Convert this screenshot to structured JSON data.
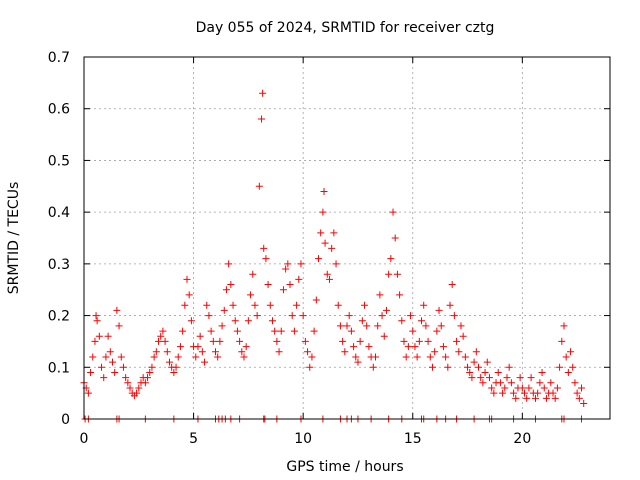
{
  "chart_data": {
    "type": "scatter",
    "title": "Day 055 of 2024, SRMTID for receiver cztg",
    "xlabel": "GPS time / hours",
    "ylabel": "SRMTID / TECUs",
    "xlim": [
      0,
      24
    ],
    "ylim": [
      0,
      0.7
    ],
    "xticks": [
      0,
      5,
      10,
      15,
      20
    ],
    "yticks": [
      0,
      0.1,
      0.2,
      0.3,
      0.4,
      0.5,
      0.6,
      0.7
    ],
    "xtick_labels": [
      "0",
      "5",
      "10",
      "15",
      "20"
    ],
    "ytick_labels": [
      "0",
      "0.1",
      "0.2",
      "0.3",
      "0.4",
      "0.5",
      "0.6",
      "0.7"
    ],
    "grid": true,
    "marker": "+",
    "color": "#ff0000",
    "series": [
      {
        "name": "SRMTID",
        "points": [
          [
            0.0,
            0.07
          ],
          [
            0.1,
            0.06
          ],
          [
            0.2,
            0.05
          ],
          [
            0.3,
            0.09
          ],
          [
            0.4,
            0.12
          ],
          [
            0.5,
            0.15
          ],
          [
            0.55,
            0.2
          ],
          [
            0.6,
            0.19
          ],
          [
            0.7,
            0.16
          ],
          [
            0.8,
            0.1
          ],
          [
            0.9,
            0.08
          ],
          [
            1.0,
            0.12
          ],
          [
            1.1,
            0.16
          ],
          [
            1.2,
            0.13
          ],
          [
            1.3,
            0.11
          ],
          [
            1.4,
            0.09
          ],
          [
            1.5,
            0.21
          ],
          [
            1.6,
            0.18
          ],
          [
            1.7,
            0.12
          ],
          [
            1.8,
            0.1
          ],
          [
            1.9,
            0.08
          ],
          [
            2.0,
            0.07
          ],
          [
            2.1,
            0.06
          ],
          [
            2.2,
            0.05
          ],
          [
            2.3,
            0.045
          ],
          [
            2.4,
            0.05
          ],
          [
            2.5,
            0.06
          ],
          [
            2.6,
            0.07
          ],
          [
            2.7,
            0.08
          ],
          [
            2.8,
            0.07
          ],
          [
            2.9,
            0.08
          ],
          [
            3.0,
            0.09
          ],
          [
            3.1,
            0.1
          ],
          [
            3.2,
            0.12
          ],
          [
            3.3,
            0.13
          ],
          [
            3.4,
            0.15
          ],
          [
            3.5,
            0.16
          ],
          [
            3.6,
            0.17
          ],
          [
            3.7,
            0.15
          ],
          [
            3.8,
            0.13
          ],
          [
            3.9,
            0.11
          ],
          [
            4.0,
            0.1
          ],
          [
            4.1,
            0.09
          ],
          [
            4.2,
            0.1
          ],
          [
            4.3,
            0.12
          ],
          [
            4.4,
            0.14
          ],
          [
            4.5,
            0.17
          ],
          [
            4.6,
            0.22
          ],
          [
            4.7,
            0.27
          ],
          [
            4.8,
            0.24
          ],
          [
            4.9,
            0.19
          ],
          [
            5.0,
            0.14
          ],
          [
            5.1,
            0.12
          ],
          [
            5.2,
            0.14
          ],
          [
            5.3,
            0.16
          ],
          [
            5.4,
            0.13
          ],
          [
            5.5,
            0.11
          ],
          [
            5.6,
            0.22
          ],
          [
            5.7,
            0.2
          ],
          [
            5.8,
            0.17
          ],
          [
            5.9,
            0.15
          ],
          [
            6.0,
            0.13
          ],
          [
            6.1,
            0.12
          ],
          [
            6.2,
            0.15
          ],
          [
            6.3,
            0.18
          ],
          [
            6.4,
            0.21
          ],
          [
            6.5,
            0.25
          ],
          [
            6.6,
            0.3
          ],
          [
            6.7,
            0.26
          ],
          [
            6.8,
            0.22
          ],
          [
            6.9,
            0.19
          ],
          [
            7.0,
            0.17
          ],
          [
            7.1,
            0.15
          ],
          [
            7.2,
            0.13
          ],
          [
            7.3,
            0.12
          ],
          [
            7.4,
            0.14
          ],
          [
            7.5,
            0.19
          ],
          [
            7.6,
            0.24
          ],
          [
            7.7,
            0.28
          ],
          [
            7.8,
            0.22
          ],
          [
            7.9,
            0.2
          ],
          [
            8.0,
            0.45
          ],
          [
            8.1,
            0.58
          ],
          [
            8.15,
            0.63
          ],
          [
            8.2,
            0.33
          ],
          [
            8.3,
            0.31
          ],
          [
            8.4,
            0.26
          ],
          [
            8.5,
            0.22
          ],
          [
            8.6,
            0.19
          ],
          [
            8.7,
            0.17
          ],
          [
            8.8,
            0.15
          ],
          [
            8.9,
            0.13
          ],
          [
            9.0,
            0.17
          ],
          [
            9.1,
            0.25
          ],
          [
            9.2,
            0.29
          ],
          [
            9.3,
            0.3
          ],
          [
            9.4,
            0.26
          ],
          [
            9.5,
            0.2
          ],
          [
            9.6,
            0.17
          ],
          [
            9.7,
            0.22
          ],
          [
            9.8,
            0.27
          ],
          [
            9.9,
            0.3
          ],
          [
            10.0,
            0.2
          ],
          [
            10.1,
            0.15
          ],
          [
            10.2,
            0.13
          ],
          [
            10.3,
            0.1
          ],
          [
            10.4,
            0.12
          ],
          [
            10.5,
            0.17
          ],
          [
            10.6,
            0.23
          ],
          [
            10.7,
            0.31
          ],
          [
            10.8,
            0.36
          ],
          [
            10.9,
            0.4
          ],
          [
            10.95,
            0.44
          ],
          [
            11.0,
            0.34
          ],
          [
            11.1,
            0.28
          ],
          [
            11.2,
            0.27
          ],
          [
            11.3,
            0.33
          ],
          [
            11.4,
            0.36
          ],
          [
            11.5,
            0.3
          ],
          [
            11.6,
            0.22
          ],
          [
            11.7,
            0.18
          ],
          [
            11.8,
            0.15
          ],
          [
            11.9,
            0.13
          ],
          [
            12.0,
            0.18
          ],
          [
            12.1,
            0.2
          ],
          [
            12.2,
            0.17
          ],
          [
            12.3,
            0.14
          ],
          [
            12.4,
            0.12
          ],
          [
            12.5,
            0.11
          ],
          [
            12.6,
            0.15
          ],
          [
            12.7,
            0.19
          ],
          [
            12.8,
            0.22
          ],
          [
            12.9,
            0.18
          ],
          [
            13.0,
            0.14
          ],
          [
            13.1,
            0.12
          ],
          [
            13.2,
            0.1
          ],
          [
            13.3,
            0.12
          ],
          [
            13.4,
            0.18
          ],
          [
            13.5,
            0.24
          ],
          [
            13.6,
            0.2
          ],
          [
            13.7,
            0.16
          ],
          [
            13.8,
            0.21
          ],
          [
            13.9,
            0.28
          ],
          [
            14.0,
            0.31
          ],
          [
            14.1,
            0.4
          ],
          [
            14.2,
            0.35
          ],
          [
            14.3,
            0.28
          ],
          [
            14.4,
            0.24
          ],
          [
            14.5,
            0.19
          ],
          [
            14.6,
            0.15
          ],
          [
            14.7,
            0.12
          ],
          [
            14.8,
            0.14
          ],
          [
            14.9,
            0.2
          ],
          [
            15.0,
            0.17
          ],
          [
            15.1,
            0.14
          ],
          [
            15.2,
            0.12
          ],
          [
            15.3,
            0.15
          ],
          [
            15.4,
            0.19
          ],
          [
            15.5,
            0.22
          ],
          [
            15.6,
            0.18
          ],
          [
            15.7,
            0.15
          ],
          [
            15.8,
            0.12
          ],
          [
            15.9,
            0.1
          ],
          [
            16.0,
            0.13
          ],
          [
            16.1,
            0.17
          ],
          [
            16.2,
            0.21
          ],
          [
            16.3,
            0.18
          ],
          [
            16.4,
            0.14
          ],
          [
            16.5,
            0.12
          ],
          [
            16.6,
            0.1
          ],
          [
            16.7,
            0.22
          ],
          [
            16.8,
            0.26
          ],
          [
            16.9,
            0.2
          ],
          [
            17.0,
            0.15
          ],
          [
            17.1,
            0.13
          ],
          [
            17.2,
            0.18
          ],
          [
            17.3,
            0.16
          ],
          [
            17.4,
            0.12
          ],
          [
            17.5,
            0.1
          ],
          [
            17.6,
            0.09
          ],
          [
            17.7,
            0.08
          ],
          [
            17.8,
            0.11
          ],
          [
            17.9,
            0.13
          ],
          [
            18.0,
            0.1
          ],
          [
            18.1,
            0.08
          ],
          [
            18.2,
            0.07
          ],
          [
            18.3,
            0.09
          ],
          [
            18.4,
            0.11
          ],
          [
            18.5,
            0.08
          ],
          [
            18.6,
            0.06
          ],
          [
            18.7,
            0.05
          ],
          [
            18.8,
            0.07
          ],
          [
            18.9,
            0.09
          ],
          [
            19.0,
            0.07
          ],
          [
            19.1,
            0.05
          ],
          [
            19.2,
            0.06
          ],
          [
            19.3,
            0.08
          ],
          [
            19.4,
            0.1
          ],
          [
            19.5,
            0.07
          ],
          [
            19.6,
            0.05
          ],
          [
            19.7,
            0.04
          ],
          [
            19.8,
            0.06
          ],
          [
            19.9,
            0.08
          ],
          [
            20.0,
            0.06
          ],
          [
            20.1,
            0.05
          ],
          [
            20.2,
            0.04
          ],
          [
            20.3,
            0.06
          ],
          [
            20.4,
            0.08
          ],
          [
            20.5,
            0.05
          ],
          [
            20.6,
            0.04
          ],
          [
            20.7,
            0.05
          ],
          [
            20.8,
            0.07
          ],
          [
            20.9,
            0.09
          ],
          [
            21.0,
            0.06
          ],
          [
            21.1,
            0.04
          ],
          [
            21.2,
            0.05
          ],
          [
            21.3,
            0.07
          ],
          [
            21.4,
            0.05
          ],
          [
            21.5,
            0.04
          ],
          [
            21.6,
            0.06
          ],
          [
            21.7,
            0.1
          ],
          [
            21.8,
            0.15
          ],
          [
            21.9,
            0.18
          ],
          [
            22.0,
            0.12
          ],
          [
            22.1,
            0.09
          ],
          [
            22.2,
            0.13
          ],
          [
            22.3,
            0.1
          ],
          [
            22.4,
            0.07
          ],
          [
            22.5,
            0.05
          ],
          [
            22.6,
            0.04
          ],
          [
            22.7,
            0.06
          ],
          [
            22.8,
            0.03
          ],
          [
            0.05,
            0.0
          ],
          [
            0.2,
            0.0
          ],
          [
            1.5,
            0.0
          ],
          [
            1.6,
            0.0
          ],
          [
            2.8,
            0.0
          ],
          [
            4.1,
            0.0
          ],
          [
            5.2,
            0.0
          ],
          [
            6.0,
            0.0
          ],
          [
            6.15,
            0.0
          ],
          [
            6.3,
            0.0
          ],
          [
            6.45,
            0.0
          ],
          [
            6.7,
            0.0
          ],
          [
            7.1,
            0.0
          ],
          [
            8.2,
            0.0
          ],
          [
            8.25,
            0.0
          ],
          [
            8.8,
            0.0
          ],
          [
            9.9,
            0.0
          ],
          [
            10.9,
            0.0
          ],
          [
            11.7,
            0.0
          ],
          [
            12.0,
            0.0
          ],
          [
            12.2,
            0.0
          ],
          [
            12.5,
            0.0
          ],
          [
            13.1,
            0.0
          ],
          [
            13.9,
            0.0
          ],
          [
            14.5,
            0.0
          ],
          [
            15.4,
            0.0
          ],
          [
            15.5,
            0.0
          ],
          [
            16.1,
            0.0
          ],
          [
            16.5,
            0.0
          ],
          [
            17.0,
            0.0
          ],
          [
            17.8,
            0.0
          ],
          [
            18.5,
            0.0
          ],
          [
            18.6,
            0.0
          ],
          [
            19.6,
            0.0
          ],
          [
            20.6,
            0.0
          ],
          [
            21.8,
            0.0
          ],
          [
            21.9,
            0.0
          ],
          [
            22.7,
            0.0
          ]
        ]
      }
    ]
  }
}
